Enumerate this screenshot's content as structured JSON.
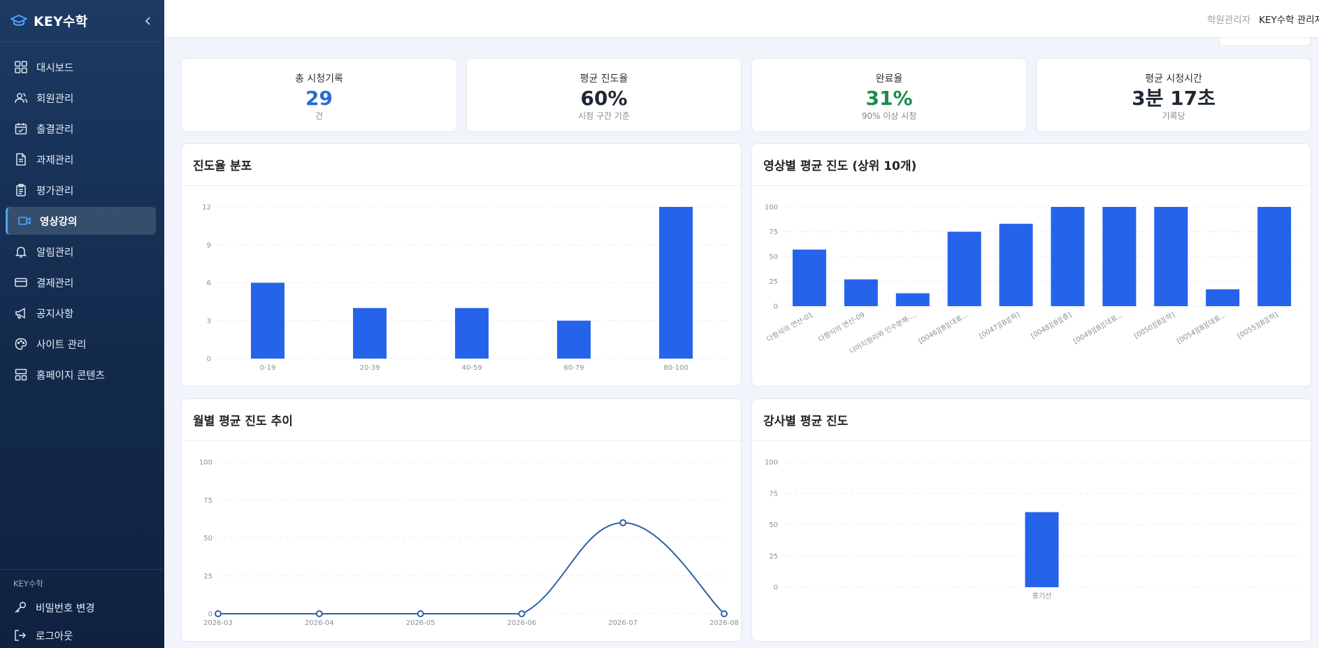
{
  "brand": {
    "name": "KEY수학"
  },
  "sidebar": {
    "items": [
      {
        "label": "대시보드",
        "icon": "dashboard-icon"
      },
      {
        "label": "회원관리",
        "icon": "users-icon"
      },
      {
        "label": "출결관리",
        "icon": "calendar-check-icon"
      },
      {
        "label": "과제관리",
        "icon": "document-icon"
      },
      {
        "label": "평가관리",
        "icon": "clipboard-icon"
      },
      {
        "label": "영상강의",
        "icon": "video-icon",
        "active": true
      },
      {
        "label": "알림관리",
        "icon": "bell-icon"
      },
      {
        "label": "결제관리",
        "icon": "credit-card-icon"
      },
      {
        "label": "공지사항",
        "icon": "megaphone-icon"
      },
      {
        "label": "사이트 관리",
        "icon": "palette-icon"
      },
      {
        "label": "홈페이지 콘텐츠",
        "icon": "layout-icon"
      }
    ],
    "footer_label": "KEY수학",
    "footer_items": [
      {
        "label": "비밀번호 변경",
        "icon": "key-icon"
      },
      {
        "label": "로그아웃",
        "icon": "logout-icon"
      }
    ]
  },
  "topbar": {
    "role": "학원관리자",
    "user": "KEY수학 관리자"
  },
  "stats": [
    {
      "label": "총 시청기록",
      "value": "29",
      "sub": "건",
      "color": "#2c6bd8"
    },
    {
      "label": "평균 진도율",
      "value": "60%",
      "sub": "시청 구간 기준",
      "color": "#1f2733"
    },
    {
      "label": "완료율",
      "value": "31%",
      "sub": "90% 이상 시청",
      "color": "#1f8a4c"
    },
    {
      "label": "평균 시청시간",
      "value": "3분 17초",
      "sub": "기록당",
      "color": "#1f2733"
    }
  ],
  "colors": {
    "bar": "#2563eb",
    "line": "#2d5fa8"
  },
  "chart_data": [
    {
      "type": "bar",
      "title": "진도율 분포",
      "categories": [
        "0-19",
        "20-39",
        "40-59",
        "60-79",
        "80-100"
      ],
      "values": [
        6,
        4,
        4,
        3,
        12
      ],
      "yticks": [
        0,
        3,
        6,
        9,
        12
      ],
      "ylim": [
        0,
        12
      ]
    },
    {
      "type": "bar",
      "title": "영상별 평균 진도 (상위 10개)",
      "categories": [
        "다항식의 연산-01",
        "다항식의 연산-09",
        "나머지정리와 인수분해-...",
        "[0046][B][대표...",
        "[0047][B][하]",
        "[0048][B][중]",
        "[0049][B][대표...",
        "[0050][B][하]",
        "[0054][B][대표...",
        "[0055][B][하]"
      ],
      "values": [
        57,
        27,
        13,
        75,
        83,
        100,
        100,
        100,
        17,
        100
      ],
      "yticks": [
        0,
        25,
        50,
        75,
        100
      ],
      "ylim": [
        0,
        100
      ]
    },
    {
      "type": "line",
      "title": "월별 평균 진도 추이",
      "x": [
        "2026-03",
        "2026-04",
        "2026-05",
        "2026-06",
        "2026-07",
        "2026-08"
      ],
      "values": [
        0,
        0,
        0,
        0,
        60,
        0
      ],
      "yticks": [
        0,
        25,
        50,
        75,
        100
      ],
      "ylim": [
        0,
        100
      ]
    },
    {
      "type": "bar",
      "title": "강사별 평균 진도",
      "categories": [
        "홍기선"
      ],
      "values": [
        60
      ],
      "yticks": [
        0,
        25,
        50,
        75,
        100
      ],
      "ylim": [
        0,
        100
      ]
    }
  ]
}
